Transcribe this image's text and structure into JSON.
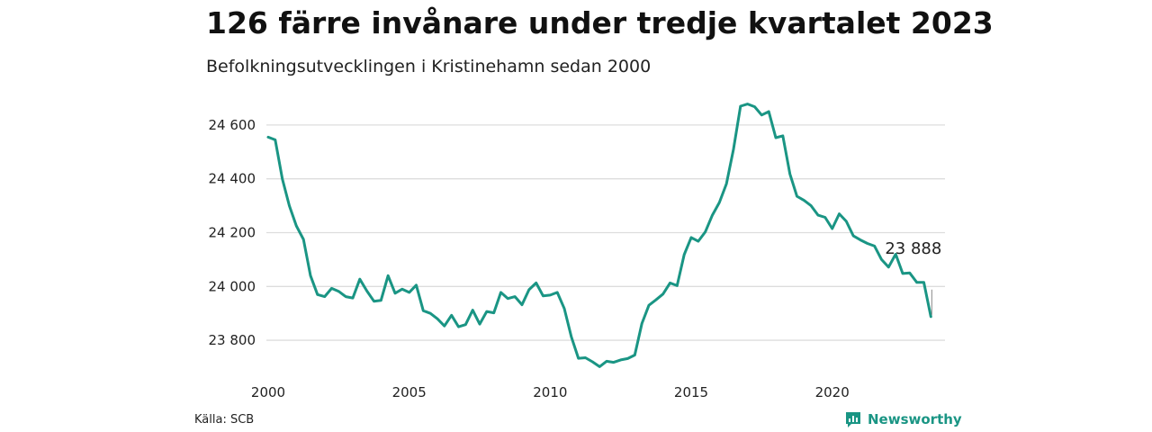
{
  "colors": {
    "line": "#1a9584",
    "grid": "#dddddd",
    "brand": "#1a9584"
  },
  "source_label": "Källa: SCB",
  "brand_name": "Newsworthy",
  "brand_icon": "newsworthy-logo-icon",
  "chart_data": {
    "type": "line",
    "title": "126 färre invånare under tredje kvartalet 2023",
    "subtitle": "Befolkningsutvecklingen i Kristinehamn sedan 2000",
    "xlabel": "",
    "ylabel": "",
    "xlim": [
      2000,
      2024
    ],
    "ylim": [
      23720,
      24690
    ],
    "grid": "horizontal",
    "y_ticks": [
      23800,
      24000,
      24200,
      24400,
      24600
    ],
    "y_tick_labels": [
      "23 800",
      "24 000",
      "24 200",
      "24 400",
      "24 600"
    ],
    "x_ticks": [
      2000,
      2005,
      2010,
      2015,
      2020
    ],
    "x_tick_labels": [
      "2000",
      "2005",
      "2010",
      "2015",
      "2020"
    ],
    "annotation": {
      "x": 2023.5,
      "y": 23888,
      "text": "23 888"
    },
    "series": [
      {
        "x": [
          2000.0,
          2000.25,
          2000.5,
          2000.75,
          2001.0,
          2001.25,
          2001.5,
          2001.75,
          2002.0,
          2002.25,
          2002.5,
          2002.75,
          2003.0,
          2003.25,
          2003.5,
          2003.75,
          2004.0,
          2004.25,
          2004.5,
          2004.75,
          2005.0,
          2005.25,
          2005.5,
          2005.75,
          2006.0,
          2006.25,
          2006.5,
          2006.75,
          2007.0,
          2007.25,
          2007.5,
          2007.75,
          2008.0,
          2008.25,
          2008.5,
          2008.75,
          2009.0,
          2009.25,
          2009.5,
          2009.75,
          2010.0,
          2010.25,
          2010.5,
          2010.75,
          2011.0,
          2011.25,
          2011.5,
          2011.75,
          2012.0,
          2012.25,
          2012.5,
          2012.75,
          2013.0,
          2013.25,
          2013.5,
          2013.75,
          2014.0,
          2014.25,
          2014.5,
          2014.75,
          2015.0,
          2015.25,
          2015.5,
          2015.75,
          2016.0,
          2016.25,
          2016.5,
          2016.75,
          2017.0,
          2017.25,
          2017.5,
          2017.75,
          2018.0,
          2018.25,
          2018.5,
          2018.75,
          2019.0,
          2019.25,
          2019.5,
          2019.75,
          2020.0,
          2020.25,
          2020.5,
          2020.75,
          2021.0,
          2021.25,
          2021.5,
          2021.75,
          2022.0,
          2022.25,
          2022.5,
          2022.75,
          2023.0,
          2023.25,
          2023.5
        ],
        "values": [
          24555,
          24545,
          24400,
          24300,
          24225,
          24175,
          24040,
          23970,
          23962,
          23993,
          23982,
          23962,
          23957,
          24027,
          23983,
          23945,
          23948,
          24040,
          23975,
          23990,
          23978,
          24005,
          23910,
          23900,
          23880,
          23853,
          23893,
          23850,
          23858,
          23912,
          23860,
          23907,
          23902,
          23978,
          23955,
          23962,
          23932,
          23988,
          24013,
          23965,
          23968,
          23978,
          23918,
          23813,
          23733,
          23735,
          23720,
          23702,
          23722,
          23718,
          23727,
          23732,
          23745,
          23862,
          23930,
          23950,
          23972,
          24013,
          24003,
          24118,
          24182,
          24168,
          24203,
          24265,
          24312,
          24382,
          24510,
          24670,
          24678,
          24668,
          24637,
          24650,
          24553,
          24560,
          24418,
          24335,
          24320,
          24300,
          24265,
          24257,
          24215,
          24270,
          24242,
          24188,
          24173,
          24160,
          24150,
          24100,
          24072,
          24120,
          24048,
          24050,
          24015,
          24015,
          23888
        ]
      }
    ]
  }
}
